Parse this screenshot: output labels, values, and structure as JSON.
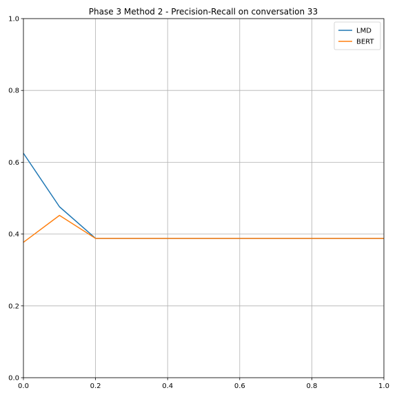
{
  "chart_data": {
    "type": "line",
    "title": "Phase 3 Method 2 - Precision-Recall on conversation 33",
    "xlabel": "",
    "ylabel": "",
    "xlim": [
      0,
      1
    ],
    "ylim": [
      0,
      1
    ],
    "xticks": [
      "0.0",
      "0.2",
      "0.4",
      "0.6",
      "0.8",
      "1.0"
    ],
    "yticks": [
      "0.0",
      "0.2",
      "0.4",
      "0.6",
      "0.8",
      "1.0"
    ],
    "grid": true,
    "legend_position": "top-right",
    "series": [
      {
        "name": "LMD",
        "color": "#1f77b4",
        "x": [
          0.0,
          0.1,
          0.2,
          0.3,
          0.4,
          0.5,
          0.6,
          0.7,
          0.8,
          0.9,
          1.0
        ],
        "y": [
          0.625,
          0.476,
          0.388,
          0.388,
          0.388,
          0.388,
          0.388,
          0.388,
          0.388,
          0.388,
          0.388
        ]
      },
      {
        "name": "BERT",
        "color": "#ff7f0e",
        "x": [
          0.0,
          0.1,
          0.2,
          0.3,
          0.4,
          0.5,
          0.6,
          0.7,
          0.8,
          0.9,
          1.0
        ],
        "y": [
          0.377,
          0.452,
          0.388,
          0.388,
          0.388,
          0.388,
          0.388,
          0.388,
          0.388,
          0.388,
          0.388
        ]
      }
    ]
  }
}
